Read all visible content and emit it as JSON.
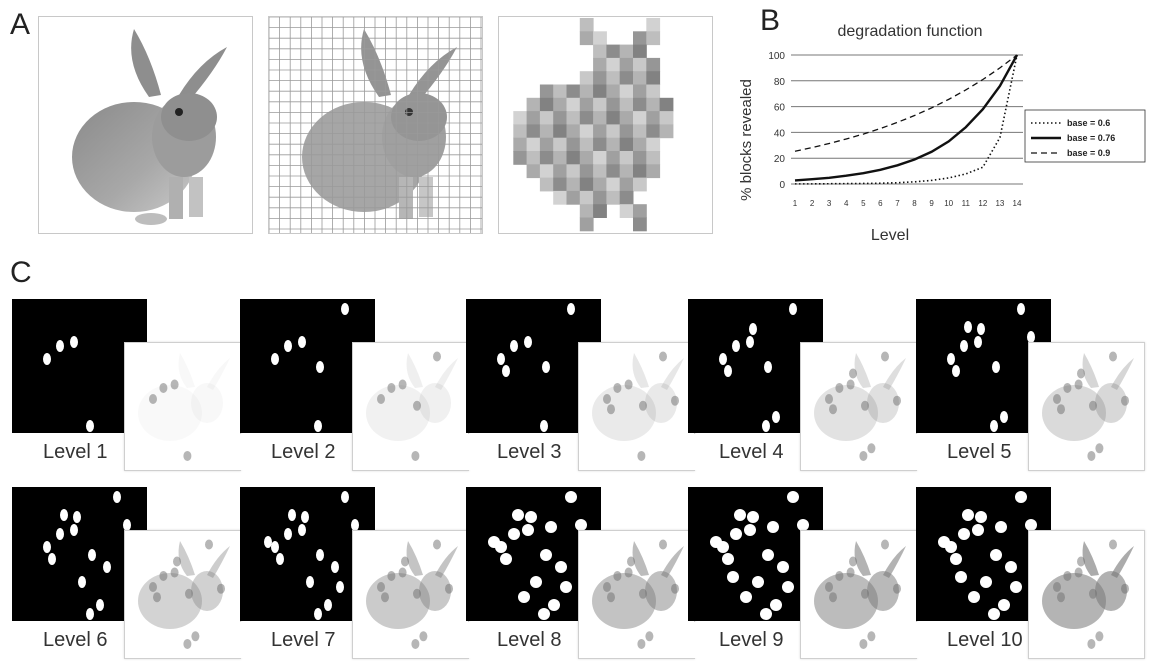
{
  "panels": {
    "a": "A",
    "b": "B",
    "c": "C"
  },
  "chart_data": {
    "type": "line",
    "title": "degradation function",
    "xlabel": "Level",
    "ylabel": "% blocks revealed",
    "x": [
      1,
      2,
      3,
      4,
      5,
      6,
      7,
      8,
      9,
      10,
      11,
      12,
      13,
      14
    ],
    "xlim": [
      1,
      14
    ],
    "ylim": [
      0,
      100
    ],
    "yticks": [
      0,
      20,
      40,
      60,
      80,
      100
    ],
    "grid": "horizontal",
    "legend_position": "right",
    "series": [
      {
        "name": "base = 0.6",
        "style": "dotted",
        "values": [
          0.1,
          0.1,
          0.2,
          0.3,
          0.4,
          0.6,
          1.0,
          1.7,
          2.8,
          4.7,
          7.8,
          13,
          36,
          100
        ]
      },
      {
        "name": "base = 0.76",
        "style": "solid",
        "values": [
          2.8,
          3.7,
          4.8,
          6.4,
          8.4,
          11,
          14.5,
          19,
          25,
          33,
          44,
          58,
          76,
          100
        ]
      },
      {
        "name": "base = 0.9",
        "style": "dashed",
        "values": [
          25.4,
          28.2,
          31.4,
          34.9,
          38.7,
          43.0,
          47.8,
          53.1,
          59.0,
          65.6,
          72.9,
          81,
          90,
          100
        ]
      }
    ]
  },
  "levels": [
    {
      "label": "Level  1"
    },
    {
      "label": "Level  2"
    },
    {
      "label": "Level  3"
    },
    {
      "label": "Level  4"
    },
    {
      "label": "Level  5"
    },
    {
      "label": "Level  6"
    },
    {
      "label": "Level  7"
    },
    {
      "label": "Level  8"
    },
    {
      "label": "Level  9"
    },
    {
      "label": "Level  10"
    }
  ],
  "colors": {
    "mask_background": "#000000",
    "reveal_spot": "#ffffff",
    "grid_line": "#9a9a9a",
    "frame_border": "#c8c8c8"
  }
}
